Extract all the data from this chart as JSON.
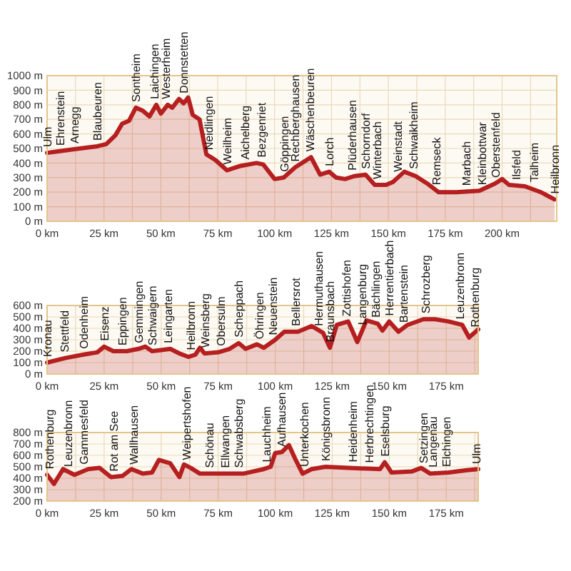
{
  "chart_data": [
    {
      "type": "area",
      "x": [
        0,
        5,
        12,
        22,
        26,
        30,
        33,
        36,
        39,
        42,
        45,
        48,
        50,
        53,
        55,
        58,
        60,
        62,
        64,
        67,
        70,
        74,
        79,
        85,
        92,
        95,
        100,
        104,
        109,
        116,
        120,
        124,
        127,
        131,
        135,
        140,
        144,
        149,
        152,
        157,
        162,
        167,
        172,
        180,
        190,
        197,
        200,
        203,
        210,
        217,
        223
      ],
      "series": [
        {
          "color": "#b51f1f",
          "values": [
            470,
            480,
            495,
            515,
            530,
            590,
            670,
            690,
            780,
            760,
            720,
            800,
            740,
            800,
            780,
            840,
            810,
            850,
            730,
            700,
            460,
            420,
            350,
            380,
            400,
            390,
            290,
            300,
            370,
            440,
            320,
            340,
            300,
            290,
            310,
            320,
            250,
            250,
            270,
            340,
            310,
            260,
            200,
            200,
            210,
            260,
            290,
            250,
            240,
            200,
            150
          ]
        }
      ],
      "xlim": [
        0,
        224
      ],
      "ylim": [
        0,
        1000
      ],
      "xticks": [
        {
          "value": 0,
          "label": "0 km"
        },
        {
          "value": 12.5,
          "label": null
        },
        {
          "value": 25,
          "label": "25 km"
        },
        {
          "value": 37.5,
          "label": null
        },
        {
          "value": 50,
          "label": "50 km"
        },
        {
          "value": 62.5,
          "label": null
        },
        {
          "value": 75,
          "label": "75 km"
        },
        {
          "value": 87.5,
          "label": null
        },
        {
          "value": 100,
          "label": "100 km"
        },
        {
          "value": 112.5,
          "label": null
        },
        {
          "value": 125,
          "label": "125 km"
        },
        {
          "value": 137.5,
          "label": null
        },
        {
          "value": 150,
          "label": "150 km"
        },
        {
          "value": 162.5,
          "label": null
        },
        {
          "value": 175,
          "label": "175 km"
        },
        {
          "value": 187.5,
          "label": null
        },
        {
          "value": 200,
          "label": "200 km"
        },
        {
          "value": 212.5,
          "label": null
        }
      ],
      "yticks": [
        {
          "value": 0,
          "label": "0 m"
        },
        {
          "value": 100,
          "label": "100 m"
        },
        {
          "value": 200,
          "label": "200 m"
        },
        {
          "value": 300,
          "label": "300 m"
        },
        {
          "value": 400,
          "label": "400 m"
        },
        {
          "value": 500,
          "label": "500 m"
        },
        {
          "value": 600,
          "label": "600 m"
        },
        {
          "value": 700,
          "label": "700 m"
        },
        {
          "value": 800,
          "label": "800 m"
        },
        {
          "value": 900,
          "label": "900 m"
        },
        {
          "value": 1000,
          "label": "1000 m"
        }
      ],
      "grid": true,
      "annotations": [
        {
          "text": "Ulm",
          "x": 0,
          "y": 470
        },
        {
          "text": "Ehrenstein",
          "x": 5.5,
          "y": 480
        },
        {
          "text": "Arnegg",
          "x": 12,
          "y": 495
        },
        {
          "text": "Blaubeuren",
          "x": 22,
          "y": 515
        },
        {
          "text": "Sontheim",
          "x": 39,
          "y": 780
        },
        {
          "text": "Laichingen",
          "x": 47,
          "y": 800
        },
        {
          "text": "Westerheim",
          "x": 52,
          "y": 800
        },
        {
          "text": "Donnstetten",
          "x": 60,
          "y": 840
        },
        {
          "text": "Neidlingen",
          "x": 71,
          "y": 450
        },
        {
          "text": "Weilheim",
          "x": 79,
          "y": 350
        },
        {
          "text": "Aichelberg",
          "x": 87,
          "y": 385
        },
        {
          "text": "Bezgenriet",
          "x": 94,
          "y": 400
        },
        {
          "text": "Göppingen",
          "x": 104,
          "y": 300
        },
        {
          "text": "Rechberghausen",
          "x": 109,
          "y": 370
        },
        {
          "text": "Wäschenbeuren",
          "x": 115.5,
          "y": 440
        },
        {
          "text": "Lorch",
          "x": 124,
          "y": 340
        },
        {
          "text": "Plüderhausen",
          "x": 134,
          "y": 310
        },
        {
          "text": "Schorndorf",
          "x": 140,
          "y": 320
        },
        {
          "text": "Winterbach",
          "x": 145,
          "y": 250
        },
        {
          "text": "Weinstadt",
          "x": 154,
          "y": 300
        },
        {
          "text": "Schwaikheim",
          "x": 161,
          "y": 320
        },
        {
          "text": "Remseck",
          "x": 171,
          "y": 210
        },
        {
          "text": "Marbach",
          "x": 184,
          "y": 205
        },
        {
          "text": "Kleinbottwar",
          "x": 191,
          "y": 210
        },
        {
          "text": "Oberstenfeld",
          "x": 197,
          "y": 260
        },
        {
          "text": "Ilsfeld",
          "x": 206,
          "y": 245
        },
        {
          "text": "Talheim",
          "x": 214,
          "y": 230
        },
        {
          "text": "Heilbronn",
          "x": 223,
          "y": 150
        }
      ]
    },
    {
      "type": "area",
      "x": [
        0,
        8,
        16,
        22,
        25,
        29,
        35,
        40,
        43,
        46,
        50,
        54,
        58,
        62,
        65,
        67,
        69,
        75,
        80,
        84,
        87,
        92,
        95,
        100,
        104,
        110,
        116,
        121,
        124,
        127,
        132,
        136,
        140,
        145,
        147,
        150,
        154,
        158,
        165,
        170,
        176,
        182,
        185,
        189
      ],
      "series": [
        {
          "color": "#b51f1f",
          "values": [
            100,
            140,
            170,
            190,
            240,
            200,
            200,
            220,
            240,
            200,
            210,
            220,
            180,
            150,
            170,
            230,
            180,
            190,
            220,
            270,
            220,
            260,
            230,
            300,
            370,
            370,
            420,
            360,
            230,
            430,
            460,
            280,
            470,
            440,
            380,
            460,
            370,
            430,
            480,
            480,
            460,
            430,
            320,
            390
          ]
        }
      ],
      "xlim": [
        0,
        189
      ],
      "ylim": [
        0,
        600
      ],
      "xticks": [
        {
          "value": 0,
          "label": "0 km"
        },
        {
          "value": 12.5,
          "label": null
        },
        {
          "value": 25,
          "label": "25 km"
        },
        {
          "value": 37.5,
          "label": null
        },
        {
          "value": 50,
          "label": "50 km"
        },
        {
          "value": 62.5,
          "label": null
        },
        {
          "value": 75,
          "label": "75 km"
        },
        {
          "value": 87.5,
          "label": null
        },
        {
          "value": 100,
          "label": "100 km"
        },
        {
          "value": 112.5,
          "label": null
        },
        {
          "value": 125,
          "label": "125 km"
        },
        {
          "value": 137.5,
          "label": null
        },
        {
          "value": 150,
          "label": "150 km"
        },
        {
          "value": 162.5,
          "label": null
        },
        {
          "value": 175,
          "label": "175 km"
        },
        {
          "value": 187.5,
          "label": null
        }
      ],
      "yticks": [
        {
          "value": 0,
          "label": "0 m"
        },
        {
          "value": 100,
          "label": "100 m"
        },
        {
          "value": 200,
          "label": "200 m"
        },
        {
          "value": 300,
          "label": "300 m"
        },
        {
          "value": 400,
          "label": "400 m"
        },
        {
          "value": 500,
          "label": "500 m"
        },
        {
          "value": 600,
          "label": "600 m"
        }
      ],
      "grid": true,
      "annotations": [
        {
          "text": "Kronau",
          "x": 0,
          "y": 100
        },
        {
          "text": "Stettfeld",
          "x": 7.5,
          "y": 140
        },
        {
          "text": "Odenheim",
          "x": 16,
          "y": 170
        },
        {
          "text": "Eisenz",
          "x": 25,
          "y": 240
        },
        {
          "text": "Eppingen",
          "x": 33,
          "y": 200
        },
        {
          "text": "Gemmingen",
          "x": 40,
          "y": 220
        },
        {
          "text": "Schwaigern",
          "x": 46,
          "y": 200
        },
        {
          "text": "Leingarten",
          "x": 53,
          "y": 220
        },
        {
          "text": "Heilbronn",
          "x": 63,
          "y": 160
        },
        {
          "text": "Weinsberg",
          "x": 69,
          "y": 180
        },
        {
          "text": "Obersulm",
          "x": 76,
          "y": 195
        },
        {
          "text": "Scheppach",
          "x": 84,
          "y": 270
        },
        {
          "text": "Öhringen",
          "x": 93,
          "y": 255
        },
        {
          "text": "Neuenstein",
          "x": 99,
          "y": 290
        },
        {
          "text": "Bellersrot",
          "x": 109,
          "y": 370
        },
        {
          "text": "Hermuthausen",
          "x": 119,
          "y": 370
        },
        {
          "text": "Braunsbach",
          "x": 124,
          "y": 230
        },
        {
          "text": "Zottishofen",
          "x": 131,
          "y": 455
        },
        {
          "text": "Langenburg",
          "x": 138,
          "y": 380
        },
        {
          "text": "Bächlingen",
          "x": 144,
          "y": 445
        },
        {
          "text": "Herrentierbach",
          "x": 150,
          "y": 460
        },
        {
          "text": "Bartenstein",
          "x": 156,
          "y": 400
        },
        {
          "text": "Schrozberg",
          "x": 166,
          "y": 480
        },
        {
          "text": "Leuzenbronn",
          "x": 181,
          "y": 430
        },
        {
          "text": "Rothenburg",
          "x": 187.5,
          "y": 360
        }
      ]
    },
    {
      "type": "area",
      "x": [
        0,
        3,
        7,
        12,
        18,
        23,
        28,
        33,
        37,
        42,
        46,
        49,
        54,
        58,
        60,
        63,
        67,
        76,
        86,
        95,
        98,
        100,
        103,
        106,
        109,
        112,
        116,
        122,
        132,
        146,
        148,
        151,
        160,
        164,
        168,
        176,
        184,
        189
      ],
      "series": [
        {
          "color": "#b51f1f",
          "values": [
            430,
            350,
            480,
            430,
            480,
            490,
            410,
            420,
            480,
            440,
            450,
            560,
            530,
            410,
            520,
            490,
            440,
            440,
            440,
            480,
            500,
            620,
            630,
            690,
            560,
            440,
            480,
            500,
            490,
            480,
            540,
            450,
            460,
            490,
            440,
            450,
            470,
            480
          ]
        }
      ],
      "xlim": [
        0,
        189
      ],
      "ylim": [
        200,
        800
      ],
      "xticks": [
        {
          "value": 0,
          "label": "0 km"
        },
        {
          "value": 12.5,
          "label": null
        },
        {
          "value": 25,
          "label": "25 km"
        },
        {
          "value": 37.5,
          "label": null
        },
        {
          "value": 50,
          "label": "50 km"
        },
        {
          "value": 62.5,
          "label": null
        },
        {
          "value": 75,
          "label": "75 km"
        },
        {
          "value": 87.5,
          "label": null
        },
        {
          "value": 100,
          "label": "100 km"
        },
        {
          "value": 112.5,
          "label": null
        },
        {
          "value": 125,
          "label": "125 km"
        },
        {
          "value": 137.5,
          "label": null
        },
        {
          "value": 150,
          "label": "150 km"
        },
        {
          "value": 162.5,
          "label": null
        },
        {
          "value": 175,
          "label": "175 km"
        },
        {
          "value": 187.5,
          "label": null
        }
      ],
      "yticks": [
        {
          "value": 200,
          "label": "200 m"
        },
        {
          "value": 300,
          "label": "300 m"
        },
        {
          "value": 400,
          "label": "400 m"
        },
        {
          "value": 500,
          "label": "500 m"
        },
        {
          "value": 600,
          "label": "600 m"
        },
        {
          "value": 700,
          "label": "700 m"
        },
        {
          "value": 800,
          "label": "800 m"
        }
      ],
      "grid": true,
      "annotations": [
        {
          "text": "Rothenburg",
          "x": 1,
          "y": 430
        },
        {
          "text": "Leuzenbronn",
          "x": 9,
          "y": 450
        },
        {
          "text": "Gammesfeld",
          "x": 16,
          "y": 470
        },
        {
          "text": "Rot am See",
          "x": 29,
          "y": 410
        },
        {
          "text": "Wallhausen",
          "x": 38,
          "y": 470
        },
        {
          "text": "Weipertshofen",
          "x": 61,
          "y": 510
        },
        {
          "text": "Schönau",
          "x": 71,
          "y": 440
        },
        {
          "text": "Ellwangen",
          "x": 78,
          "y": 440
        },
        {
          "text": "Schwabsberg",
          "x": 84,
          "y": 440
        },
        {
          "text": "Lauchheim",
          "x": 96,
          "y": 490
        },
        {
          "text": "Aufhausen",
          "x": 102.5,
          "y": 625
        },
        {
          "text": "Unterkochen",
          "x": 112.5,
          "y": 450
        },
        {
          "text": "Königsbronn",
          "x": 122,
          "y": 500
        },
        {
          "text": "Heidenheim",
          "x": 134,
          "y": 490
        },
        {
          "text": "Herbrechtingen",
          "x": 141,
          "y": 485
        },
        {
          "text": "Eselsburg",
          "x": 148,
          "y": 540
        },
        {
          "text": "Setzingen",
          "x": 165,
          "y": 480
        },
        {
          "text": "Langenau",
          "x": 169,
          "y": 445
        },
        {
          "text": "Elchingen",
          "x": 175,
          "y": 450
        },
        {
          "text": "Ulm",
          "x": 188,
          "y": 475
        }
      ]
    }
  ]
}
